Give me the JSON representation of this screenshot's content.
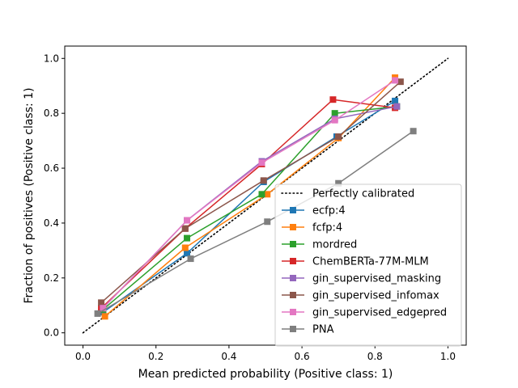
{
  "chart_data": {
    "type": "line",
    "title": "",
    "xlabel": "Mean predicted probability (Positive class: 1)",
    "ylabel": "Fraction of positives (Positive class: 1)",
    "xlim": [
      -0.05,
      1.05
    ],
    "ylim": [
      -0.045,
      1.045
    ],
    "xticks": [
      0.0,
      0.2,
      0.4,
      0.6,
      0.8,
      1.0
    ],
    "yticks": [
      0.0,
      0.2,
      0.4,
      0.6,
      0.8,
      1.0
    ],
    "tick_labels": [
      "0.0",
      "0.2",
      "0.4",
      "0.6",
      "0.8",
      "1.0"
    ],
    "grid": false,
    "legend_position": "lower-right",
    "reference": {
      "name": "Perfectly calibrated",
      "x": [
        0,
        1
      ],
      "y": [
        0,
        1
      ],
      "color": "#000000",
      "style": "dotted"
    },
    "series": [
      {
        "name": "ecfp:4",
        "color": "#1f77b4",
        "x": [
          0.055,
          0.285,
          0.495,
          0.695,
          0.855
        ],
        "y": [
          0.075,
          0.29,
          0.55,
          0.715,
          0.845
        ]
      },
      {
        "name": "fcfp:4",
        "color": "#ff7f0e",
        "x": [
          0.06,
          0.28,
          0.505,
          0.7,
          0.855
        ],
        "y": [
          0.06,
          0.31,
          0.505,
          0.71,
          0.93
        ]
      },
      {
        "name": "mordred",
        "color": "#2ca02c",
        "x": [
          0.055,
          0.285,
          0.49,
          0.69,
          0.86
        ],
        "y": [
          0.085,
          0.345,
          0.505,
          0.8,
          0.825
        ]
      },
      {
        "name": "ChemBERTa-77M-MLM",
        "color": "#d62728",
        "x": [
          0.05,
          0.28,
          0.49,
          0.685,
          0.855
        ],
        "y": [
          0.09,
          0.38,
          0.615,
          0.85,
          0.82
        ]
      },
      {
        "name": "gin_supervised_masking",
        "color": "#9467bd",
        "x": [
          0.055,
          0.285,
          0.49,
          0.69,
          0.86
        ],
        "y": [
          0.09,
          0.41,
          0.625,
          0.78,
          0.825
        ]
      },
      {
        "name": "gin_supervised_infomax",
        "color": "#8c564b",
        "x": [
          0.05,
          0.28,
          0.495,
          0.7,
          0.87
        ],
        "y": [
          0.11,
          0.38,
          0.555,
          0.715,
          0.915
        ]
      },
      {
        "name": "gin_supervised_edgepred",
        "color": "#e377c2",
        "x": [
          0.055,
          0.285,
          0.49,
          0.69,
          0.855
        ],
        "y": [
          0.09,
          0.41,
          0.62,
          0.775,
          0.92
        ]
      },
      {
        "name": "PNA",
        "color": "#7f7f7f",
        "x": [
          0.04,
          0.295,
          0.505,
          0.7,
          0.905
        ],
        "y": [
          0.07,
          0.27,
          0.405,
          0.545,
          0.735
        ]
      }
    ]
  }
}
